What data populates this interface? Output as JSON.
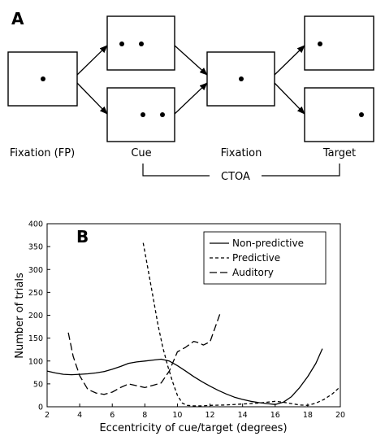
{
  "panel_a": {
    "letter": "A",
    "labels": {
      "fixation_fp": "Fixation (FP)",
      "cue": "Cue",
      "fixation": "Fixation",
      "target": "Target",
      "ctoa": "CTOA"
    }
  },
  "panel_b": {
    "letter": "B"
  },
  "chart_data": {
    "type": "line",
    "title": "",
    "xlabel": "Eccentricity of cue/target (degrees)",
    "ylabel": "Number of trials",
    "xlim": [
      2,
      20
    ],
    "ylim": [
      0,
      400
    ],
    "xticks": [
      2,
      4,
      6,
      8,
      10,
      12,
      14,
      16,
      18,
      20
    ],
    "yticks": [
      0,
      50,
      100,
      150,
      200,
      250,
      300,
      350,
      400
    ],
    "grid": false,
    "legend_position": "top-right",
    "series": [
      {
        "name": "Non-predictive",
        "style": "solid",
        "x": [
          2,
          2.5,
          3,
          3.5,
          4,
          4.5,
          5,
          5.5,
          6,
          6.5,
          7,
          7.5,
          8,
          8.5,
          9,
          9.5,
          10,
          10.5,
          11,
          11.5,
          12,
          12.5,
          13,
          13.5,
          14,
          14.5,
          15,
          15.5,
          16,
          16.5,
          17,
          17.5,
          18,
          18.5,
          18.9
        ],
        "y": [
          78,
          74,
          71,
          70,
          71,
          72,
          74,
          77,
          82,
          88,
          95,
          98,
          100,
          102,
          104,
          100,
          90,
          78,
          66,
          55,
          45,
          36,
          28,
          21,
          16,
          12,
          9,
          7,
          5,
          10,
          22,
          42,
          66,
          95,
          127
        ]
      },
      {
        "name": "Predictive",
        "style": "dashed",
        "x": [
          7.9,
          8.2,
          8.5,
          8.8,
          9.1,
          9.4,
          9.7,
          10,
          10.3,
          10.6,
          11,
          11.5,
          12,
          13,
          14,
          15,
          15.5,
          16,
          16.5,
          17,
          17.5,
          18,
          18.5,
          19,
          19.5,
          20
        ],
        "y": [
          358,
          300,
          240,
          180,
          130,
          90,
          55,
          25,
          8,
          3,
          2,
          2,
          3,
          4,
          6,
          8,
          10,
          12,
          10,
          7,
          4,
          3,
          8,
          16,
          28,
          44
        ]
      },
      {
        "name": "Auditory",
        "style": "long-dash",
        "x": [
          3.3,
          3.6,
          4,
          4.5,
          5,
          5.5,
          6,
          6.5,
          7,
          7.5,
          8,
          8.5,
          9,
          9.5,
          10,
          10.5,
          11,
          11.3,
          11.6,
          12,
          12.3,
          12.6
        ],
        "y": [
          162,
          110,
          68,
          38,
          30,
          27,
          32,
          42,
          50,
          46,
          42,
          47,
          52,
          78,
          120,
          130,
          143,
          140,
          135,
          142,
          172,
          202
        ]
      }
    ]
  }
}
